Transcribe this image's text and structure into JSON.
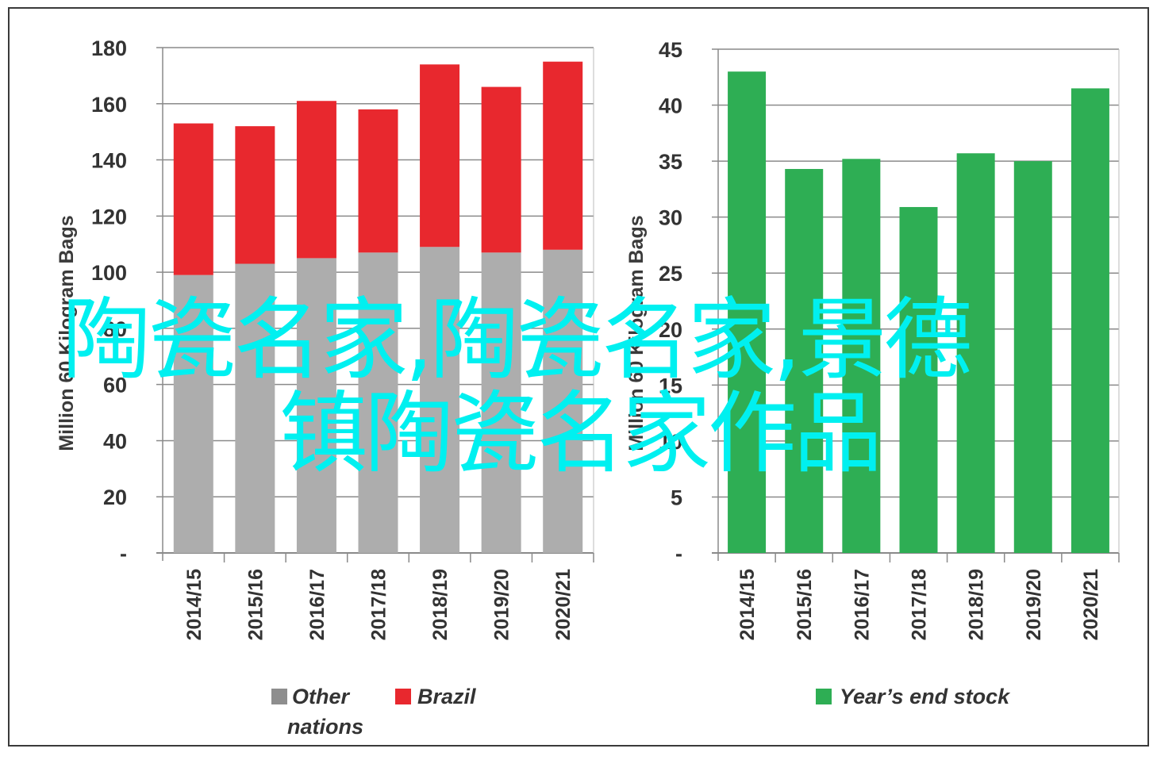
{
  "chart_data": [
    {
      "type": "bar",
      "stacked": true,
      "categories": [
        "2014/15",
        "2015/16",
        "2016/17",
        "2017/18",
        "2018/19",
        "2019/20",
        "2020/21"
      ],
      "series": [
        {
          "name": "Other nations",
          "color": "#adadad",
          "values": [
            99,
            103,
            105,
            107,
            109,
            107,
            108
          ]
        },
        {
          "name": "Brazil",
          "color": "#e8282e",
          "values": [
            54,
            49,
            56,
            51,
            65,
            59,
            67
          ]
        }
      ],
      "ylabel": "Million 60 Kilogram Bags",
      "ylim": [
        0,
        180
      ],
      "yticks": [
        "-",
        "20",
        "40",
        "60",
        "80",
        "100",
        "120",
        "140",
        "160",
        "180"
      ],
      "legend": {
        "position": "bottom",
        "items": [
          {
            "label_lines": [
              "Other",
              "nations"
            ],
            "color": "#8e8e8e"
          },
          {
            "label_lines": [
              "Brazil"
            ],
            "color": "#e8282e"
          }
        ]
      },
      "grid": true
    },
    {
      "type": "bar",
      "categories": [
        "2014/15",
        "2015/16",
        "2016/17",
        "2017/18",
        "2018/19",
        "2019/20",
        "2020/21"
      ],
      "series": [
        {
          "name": "Year's end stock",
          "color": "#2eae54",
          "values": [
            43,
            34.3,
            35.2,
            30.9,
            35.7,
            35.0,
            41.5
          ]
        }
      ],
      "ylabel": "Million 60 Kilogram Bags",
      "ylim": [
        0,
        45
      ],
      "yticks": [
        "-",
        "5",
        "10",
        "15",
        "20",
        "25",
        "30",
        "35",
        "40",
        "45"
      ],
      "legend": {
        "position": "bottom",
        "items": [
          {
            "label_lines": [
              "Year’s end stock"
            ],
            "color": "#2eae54"
          }
        ]
      },
      "grid": true
    }
  ],
  "overlay": {
    "line1": "陶瓷名家,陶瓷名家,景德",
    "line2": "镇陶瓷名家作品",
    "color": "#00f0f0"
  }
}
